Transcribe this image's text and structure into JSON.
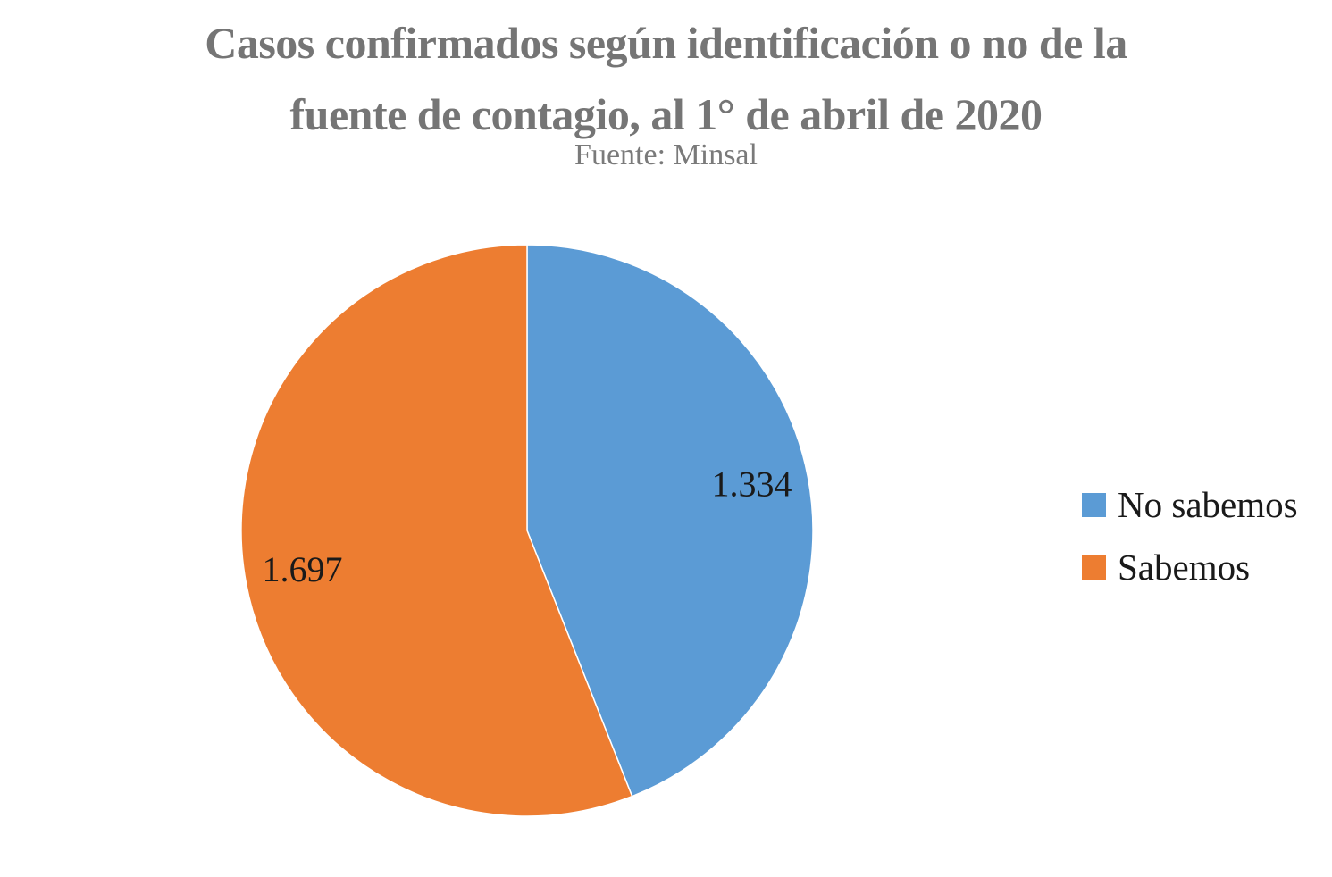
{
  "chart_data": {
    "type": "pie",
    "title_lines": [
      "Casos confirmados según identificación o no de la",
      "fuente de contagio, al 1° de abril de 2020"
    ],
    "subtitle": "Fuente: Minsal",
    "slices": [
      {
        "name": "No sabemos",
        "value": 1334,
        "label": "1.334",
        "color": "#5b9bd5"
      },
      {
        "name": "Sabemos",
        "value": 1697,
        "label": "1.697",
        "color": "#ed7d31"
      }
    ],
    "legend": {
      "position": "right",
      "items": [
        "No sabemos",
        "Sabemos"
      ]
    }
  }
}
